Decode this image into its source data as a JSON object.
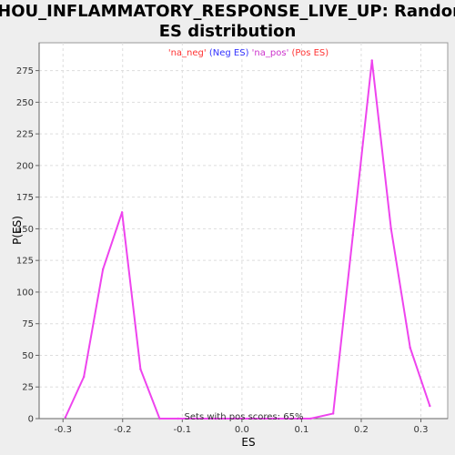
{
  "chart_data": {
    "type": "line",
    "title_line1": "ZHOU_INFLAMMATORY_RESPONSE_LIVE_UP: Random",
    "title_line2": "ES distribution",
    "xlabel": "ES",
    "ylabel": "P(ES)",
    "xlim": [
      -0.34,
      0.345
    ],
    "ylim": [
      0,
      297
    ],
    "xticks": [
      -0.3,
      -0.2,
      -0.1,
      0.0,
      0.1,
      0.2,
      0.3
    ],
    "xtick_labels": [
      "-0.3",
      "-0.2",
      "-0.1",
      "0.0",
      "0.1",
      "0.2",
      "0.3"
    ],
    "yticks": [
      0,
      25,
      50,
      75,
      100,
      125,
      150,
      175,
      200,
      225,
      250,
      275
    ],
    "ytick_labels": [
      "0",
      "25",
      "50",
      "75",
      "100",
      "125",
      "150",
      "175",
      "200",
      "225",
      "250",
      "275"
    ],
    "grid": true,
    "legend": {
      "placement": "top-center",
      "entries": [
        {
          "text": "'na_neg'",
          "color": "#ff3333"
        },
        {
          "text": "(Neg ES)",
          "color": "#3333ff"
        },
        {
          "text": "'na_pos'",
          "color": "#cc33cc"
        },
        {
          "text": "(Pos ES)",
          "color": "#ff3333"
        }
      ]
    },
    "annotation": "Sets with pos scores: 65%",
    "series": [
      {
        "color": "#ee44ee",
        "x": [
          -0.296,
          -0.265,
          -0.233,
          -0.201,
          -0.17,
          -0.138,
          -0.107,
          -0.075,
          -0.043,
          -0.012,
          0.02,
          0.051,
          0.083,
          0.115,
          0.153,
          0.186,
          0.218,
          0.25,
          0.282,
          0.315
        ],
        "y": [
          1,
          33,
          118,
          163,
          39,
          0,
          0,
          0,
          0,
          0,
          0,
          0,
          0,
          0,
          4,
          145,
          283,
          150,
          56,
          10
        ]
      }
    ]
  }
}
